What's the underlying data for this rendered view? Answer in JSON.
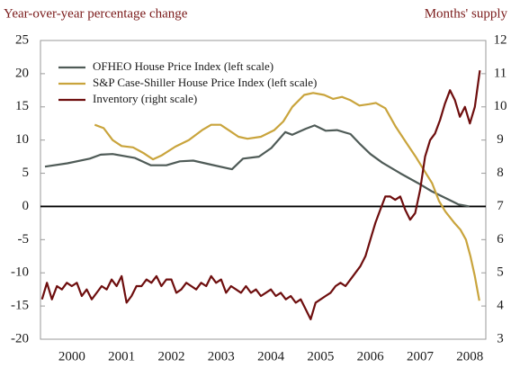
{
  "chart_data": {
    "type": "line",
    "y_label": "Year-over-year percentage change",
    "y2_label": "Months' supply",
    "xlim": [
      1999.87,
      2008.82
    ],
    "xticks": [
      {
        "value": 2000.5,
        "label": "2000"
      },
      {
        "value": 2001.5,
        "label": "2001"
      },
      {
        "value": 2002.5,
        "label": "2002"
      },
      {
        "value": 2003.5,
        "label": "2003"
      },
      {
        "value": 2004.5,
        "label": "2004"
      },
      {
        "value": 2005.5,
        "label": "2005"
      },
      {
        "value": 2006.5,
        "label": "2006"
      },
      {
        "value": 2007.5,
        "label": "2007"
      },
      {
        "value": 2008.5,
        "label": "2008"
      }
    ],
    "ylim": [
      -20,
      25
    ],
    "yticks": [
      -20,
      -15,
      -10,
      -5,
      0,
      5,
      10,
      15,
      20,
      25
    ],
    "y2lim": [
      3,
      12
    ],
    "y2ticks": [
      3,
      4,
      5,
      6,
      7,
      8,
      9,
      10,
      11,
      12
    ],
    "legend": "upper left",
    "series": [
      {
        "name": "OFHEO House Price Index (left scale)",
        "color": "#4f5b57",
        "x": [
          1999.96,
          2000.41,
          2000.86,
          2001.08,
          2001.32,
          2001.77,
          2002.09,
          2002.4,
          2002.67,
          2002.94,
          2003.3,
          2003.72,
          2003.94,
          2004.26,
          2004.51,
          2004.79,
          2004.93,
          2005.2,
          2005.38,
          2005.6,
          2005.83,
          2006.1,
          2006.28,
          2006.5,
          2006.74,
          2007.1,
          2007.46,
          2007.73,
          2008.27,
          2008.49
        ],
        "values": [
          6,
          6.5,
          7.2,
          7.8,
          7.9,
          7.3,
          6.2,
          6.2,
          6.8,
          6.9,
          6.3,
          5.6,
          7.2,
          7.5,
          8.8,
          11.2,
          10.8,
          11.7,
          12.2,
          11.4,
          11.5,
          10.9,
          9.5,
          7.9,
          6.6,
          5,
          3.5,
          2.3,
          0.3,
          0
        ]
      },
      {
        "name": "S&P Case-Shiller House Price Index (left scale)",
        "color": "#c9a43c",
        "x": [
          2000.96,
          2001.14,
          2001.32,
          2001.5,
          2001.73,
          2001.95,
          2002.13,
          2002.31,
          2002.58,
          2002.85,
          2003.12,
          2003.3,
          2003.49,
          2003.67,
          2003.85,
          2004.03,
          2004.3,
          2004.57,
          2004.75,
          2004.93,
          2005.17,
          2005.35,
          2005.57,
          2005.75,
          2005.93,
          2006.1,
          2006.28,
          2006.47,
          2006.61,
          2006.8,
          2007.01,
          2007.23,
          2007.41,
          2007.59,
          2007.74,
          2007.88,
          2008.01,
          2008.19,
          2008.31,
          2008.42,
          2008.51,
          2008.6,
          2008.69
        ],
        "values": [
          12.3,
          11.8,
          10,
          9.1,
          8.9,
          8,
          7.1,
          7.7,
          9,
          10,
          11.5,
          12.3,
          12.3,
          11.4,
          10.5,
          10.2,
          10.5,
          11.5,
          12.8,
          15,
          16.8,
          17.1,
          16.8,
          16.2,
          16.5,
          16,
          15.2,
          15.4,
          15.6,
          14.8,
          12,
          9.5,
          7.5,
          5.3,
          3.5,
          0.8,
          -0.8,
          -2.5,
          -3.5,
          -5,
          -7.5,
          -10.5,
          -14.2
        ]
      },
      {
        "name": "Inventory (right scale)",
        "color": "#6e0e0e",
        "axis": "y2",
        "x": [
          1999.9,
          2000.0,
          2000.1,
          2000.2,
          2000.3,
          2000.4,
          2000.5,
          2000.6,
          2000.7,
          2000.8,
          2000.9,
          2001.0,
          2001.1,
          2001.2,
          2001.3,
          2001.4,
          2001.5,
          2001.6,
          2001.7,
          2001.8,
          2001.9,
          2002.0,
          2002.1,
          2002.2,
          2002.3,
          2002.4,
          2002.5,
          2002.6,
          2002.7,
          2002.8,
          2002.9,
          2003.0,
          2003.1,
          2003.2,
          2003.3,
          2003.4,
          2003.5,
          2003.6,
          2003.7,
          2003.8,
          2003.9,
          2004.0,
          2004.1,
          2004.2,
          2004.3,
          2004.4,
          2004.5,
          2004.6,
          2004.7,
          2004.8,
          2004.9,
          2005.0,
          2005.1,
          2005.2,
          2005.3,
          2005.4,
          2005.5,
          2005.6,
          2005.7,
          2005.8,
          2005.9,
          2006.0,
          2006.1,
          2006.2,
          2006.3,
          2006.4,
          2006.5,
          2006.6,
          2006.7,
          2006.8,
          2006.9,
          2007.0,
          2007.1,
          2007.2,
          2007.3,
          2007.4,
          2007.5,
          2007.6,
          2007.7,
          2007.8,
          2007.9,
          2008.0,
          2008.1,
          2008.2,
          2008.3,
          2008.4,
          2008.5,
          2008.6,
          2008.7
        ],
        "values": [
          4.2,
          4.7,
          4.2,
          4.6,
          4.5,
          4.7,
          4.6,
          4.7,
          4.3,
          4.5,
          4.2,
          4.4,
          4.6,
          4.5,
          4.8,
          4.6,
          4.9,
          4.1,
          4.3,
          4.6,
          4.6,
          4.8,
          4.7,
          4.9,
          4.6,
          4.8,
          4.8,
          4.4,
          4.5,
          4.7,
          4.6,
          4.5,
          4.7,
          4.6,
          4.9,
          4.7,
          4.8,
          4.4,
          4.6,
          4.5,
          4.4,
          4.6,
          4.4,
          4.5,
          4.3,
          4.4,
          4.5,
          4.3,
          4.4,
          4.2,
          4.3,
          4.1,
          4.2,
          3.9,
          3.6,
          4.1,
          4.2,
          4.3,
          4.4,
          4.6,
          4.7,
          4.6,
          4.8,
          5.0,
          5.2,
          5.5,
          6.0,
          6.5,
          6.9,
          7.3,
          7.3,
          7.2,
          7.3,
          6.9,
          6.6,
          6.8,
          7.5,
          8.5,
          9.0,
          9.2,
          9.6,
          10.1,
          10.5,
          10.2,
          9.7,
          10.0,
          9.5,
          10.0,
          11.1
        ]
      }
    ]
  }
}
